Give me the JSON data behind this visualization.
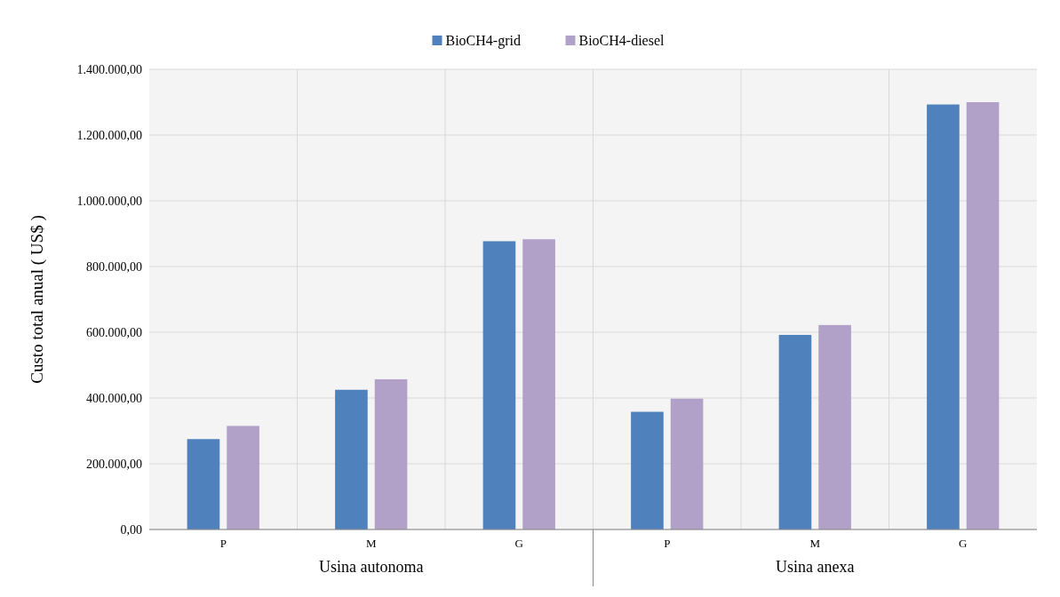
{
  "chart_data": {
    "type": "bar",
    "ylabel": "Custo total anual ( US$ )",
    "categories": [
      "P",
      "M",
      "G",
      "P",
      "M",
      "G"
    ],
    "annotations": [
      "Usina autonoma",
      "Usina anexa"
    ],
    "series": [
      {
        "name": "BioCH4-grid",
        "color": "#4f81bd",
        "values": [
          275000,
          425000,
          877000,
          358000,
          592000,
          1293000
        ]
      },
      {
        "name": "BioCH4-diesel",
        "color": "#b1a0c7",
        "values": [
          315000,
          457000,
          883000,
          398000,
          622000,
          1300000
        ]
      }
    ],
    "ylim": [
      0,
      1400000
    ],
    "yticks": [
      {
        "value": 0,
        "label": "0,00"
      },
      {
        "value": 200000,
        "label": "200.000,00"
      },
      {
        "value": 400000,
        "label": "400.000,00"
      },
      {
        "value": 600000,
        "label": "600.000,00"
      },
      {
        "value": 800000,
        "label": "800.000,00"
      },
      {
        "value": 1000000,
        "label": "1.000.000,00"
      },
      {
        "value": 1200000,
        "label": "1.200.000,00"
      },
      {
        "value": 1400000,
        "label": "1.400.000,00"
      }
    ],
    "grid": true,
    "legend": "top"
  }
}
